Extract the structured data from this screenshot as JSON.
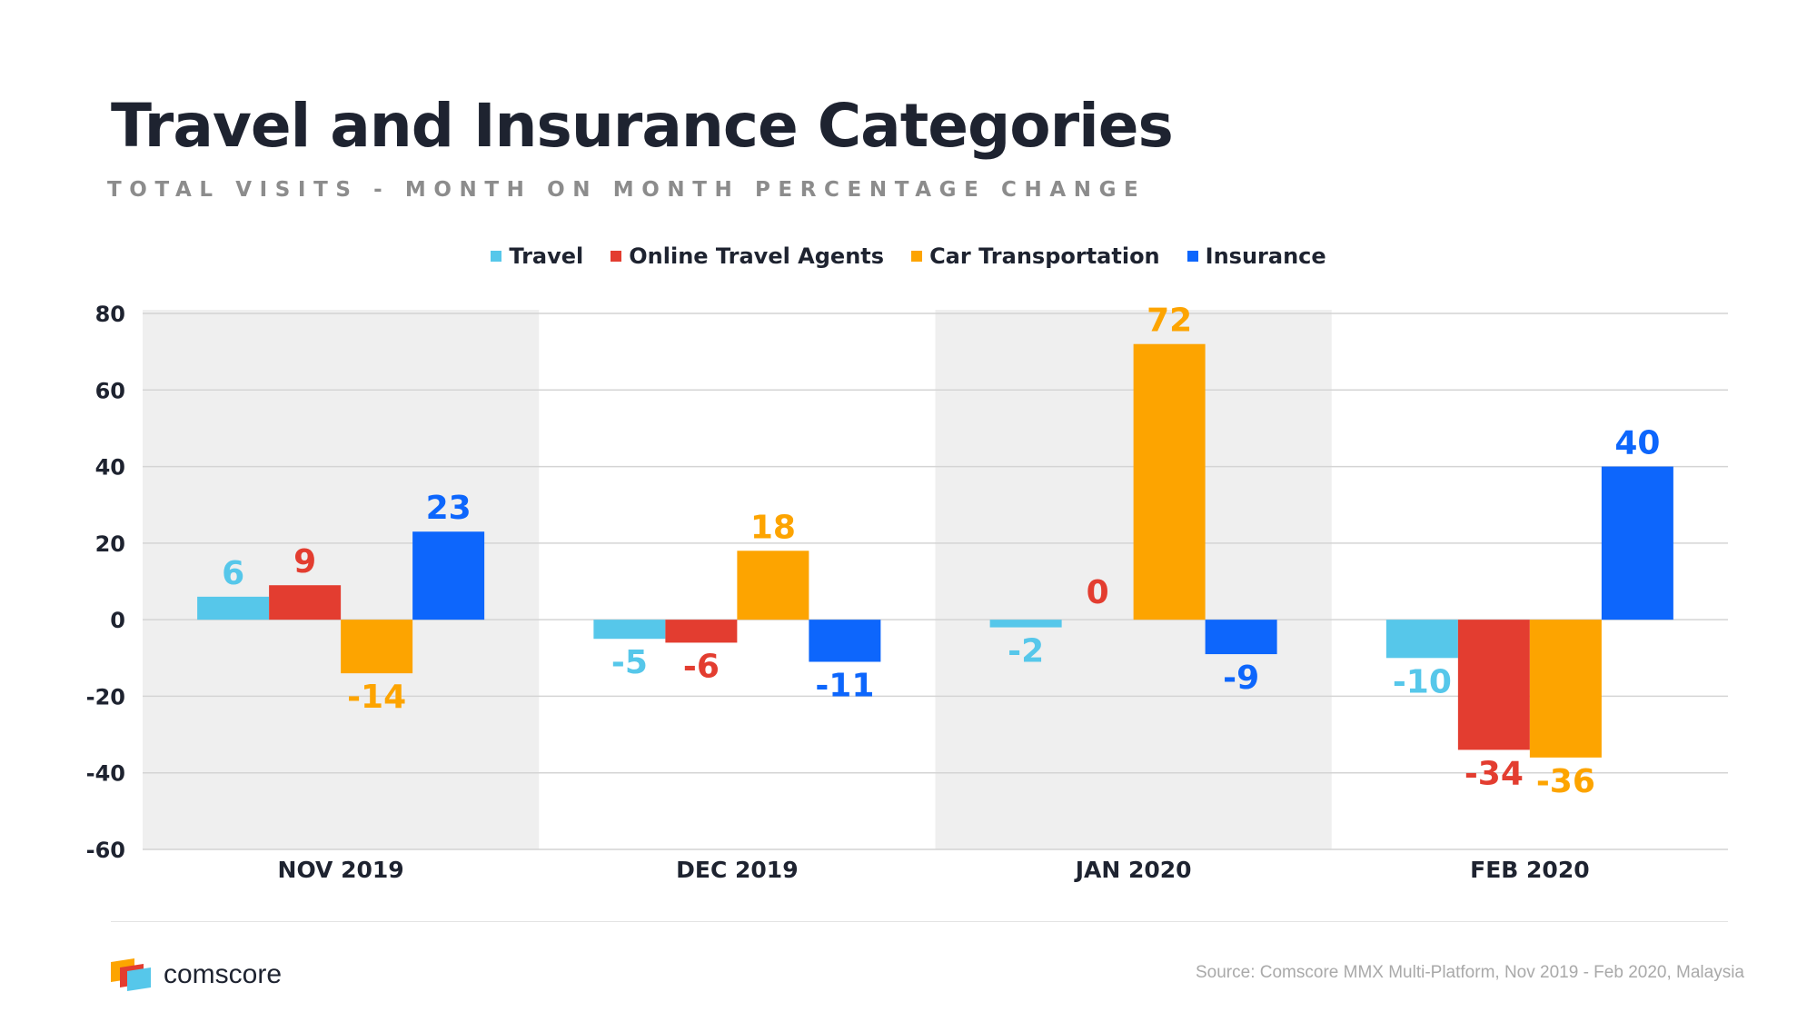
{
  "title": "Travel and Insurance Categories",
  "subtitle": "TOTAL VISITS - MONTH ON MONTH PERCENTAGE CHANGE",
  "brand": {
    "name": "comscore"
  },
  "source": "Source: Comscore MMX Multi-Platform, Nov 2019 - Feb 2020, Malaysia",
  "chart_data": {
    "type": "bar",
    "categories": [
      "NOV 2019",
      "DEC 2019",
      "JAN 2020",
      "FEB 2020"
    ],
    "series": [
      {
        "name": "Travel",
        "color": "#56c7ea",
        "values": [
          6,
          -5,
          -2,
          -10
        ]
      },
      {
        "name": "Online Travel Agents",
        "color": "#e33d30",
        "values": [
          9,
          -6,
          0,
          -34
        ]
      },
      {
        "name": "Car Transportation",
        "color": "#fda400",
        "values": [
          -14,
          18,
          72,
          -36
        ]
      },
      {
        "name": "Insurance",
        "color": "#0d66fc",
        "values": [
          23,
          -11,
          -9,
          40
        ]
      }
    ],
    "ylim": [
      -60,
      80
    ],
    "yticks": [
      80,
      60,
      40,
      20,
      0,
      -20,
      -40,
      -60
    ],
    "legend_position": "top",
    "grid": true,
    "band_color": "#efefef",
    "shaded_categories": [
      "NOV 2019",
      "JAN 2020"
    ]
  }
}
